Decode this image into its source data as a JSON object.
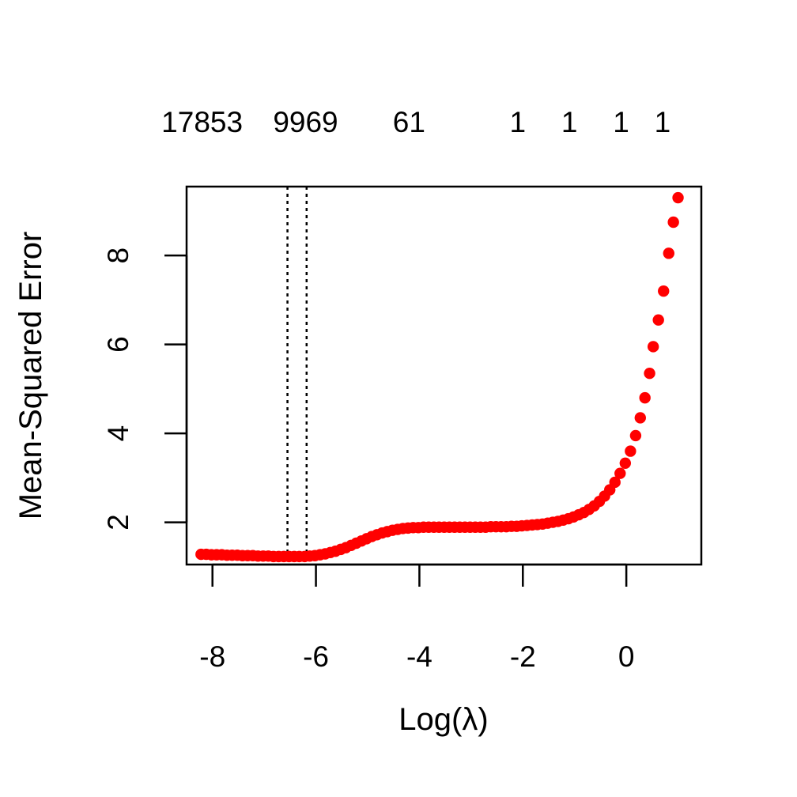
{
  "chart_data": {
    "type": "scatter",
    "title": "",
    "xlabel": "Log(λ)",
    "ylabel": "Mean-Squared Error",
    "xlim": [
      -8.5,
      1.45
    ],
    "ylim": [
      1.05,
      9.55
    ],
    "x_ticks": [
      -8,
      -6,
      -4,
      -2,
      0
    ],
    "x_tick_labels": [
      "-8",
      "-6",
      "-4",
      "-2",
      "0"
    ],
    "y_ticks": [
      2,
      4,
      6,
      8
    ],
    "y_tick_labels": [
      "2",
      "4",
      "6",
      "8"
    ],
    "top_axis": {
      "ticks": [
        -8.2,
        -6.2,
        -4.2,
        -2.1,
        -1.1,
        -0.1,
        0.7
      ],
      "labels": [
        "17853",
        "9969",
        "61",
        "1",
        "1",
        "1",
        "1"
      ]
    },
    "vlines": [
      -6.55,
      -6.18
    ],
    "vline_style": "dotted",
    "point_color": "#ff0000",
    "grid": false,
    "series": [
      {
        "x": [
          -8.22,
          -8.12,
          -8.02,
          -7.92,
          -7.82,
          -7.72,
          -7.62,
          -7.52,
          -7.42,
          -7.32,
          -7.22,
          -7.12,
          -7.02,
          -6.92,
          -6.82,
          -6.72,
          -6.62,
          -6.52,
          -6.42,
          -6.32,
          -6.22,
          -6.12,
          -6.02,
          -5.92,
          -5.82,
          -5.72,
          -5.62,
          -5.52,
          -5.42,
          -5.32,
          -5.22,
          -5.12,
          -5.02,
          -4.92,
          -4.82,
          -4.72,
          -4.62,
          -4.52,
          -4.42,
          -4.32,
          -4.22,
          -4.12,
          -4.02,
          -3.92,
          -3.82,
          -3.72,
          -3.62,
          -3.52,
          -3.42,
          -3.32,
          -3.22,
          -3.12,
          -3.02,
          -2.92,
          -2.82,
          -2.72,
          -2.62,
          -2.52,
          -2.42,
          -2.32,
          -2.22,
          -2.12,
          -2.02,
          -1.92,
          -1.82,
          -1.72,
          -1.62,
          -1.52,
          -1.42,
          -1.32,
          -1.22,
          -1.12,
          -1.02,
          -0.92,
          -0.82,
          -0.72,
          -0.62,
          -0.52,
          -0.42,
          -0.32,
          -0.22,
          -0.12,
          -0.02,
          0.08,
          0.18,
          0.27,
          0.36,
          0.45,
          0.52,
          0.62,
          0.72,
          0.82,
          0.91,
          1.0
        ],
        "y": [
          1.28,
          1.28,
          1.27,
          1.27,
          1.27,
          1.26,
          1.26,
          1.26,
          1.25,
          1.25,
          1.25,
          1.24,
          1.24,
          1.24,
          1.23,
          1.23,
          1.23,
          1.23,
          1.23,
          1.23,
          1.23,
          1.24,
          1.25,
          1.27,
          1.29,
          1.32,
          1.35,
          1.39,
          1.43,
          1.48,
          1.53,
          1.58,
          1.63,
          1.68,
          1.72,
          1.76,
          1.79,
          1.82,
          1.84,
          1.86,
          1.87,
          1.88,
          1.88,
          1.89,
          1.89,
          1.89,
          1.89,
          1.89,
          1.89,
          1.89,
          1.89,
          1.89,
          1.89,
          1.89,
          1.89,
          1.89,
          1.9,
          1.9,
          1.9,
          1.9,
          1.91,
          1.91,
          1.92,
          1.93,
          1.94,
          1.95,
          1.96,
          1.98,
          2.0,
          2.02,
          2.05,
          2.08,
          2.12,
          2.17,
          2.22,
          2.29,
          2.37,
          2.47,
          2.59,
          2.73,
          2.9,
          3.1,
          3.33,
          3.6,
          3.95,
          4.35,
          4.8,
          5.35,
          5.95,
          6.55,
          7.2,
          8.05,
          8.75,
          9.3
        ]
      }
    ]
  }
}
